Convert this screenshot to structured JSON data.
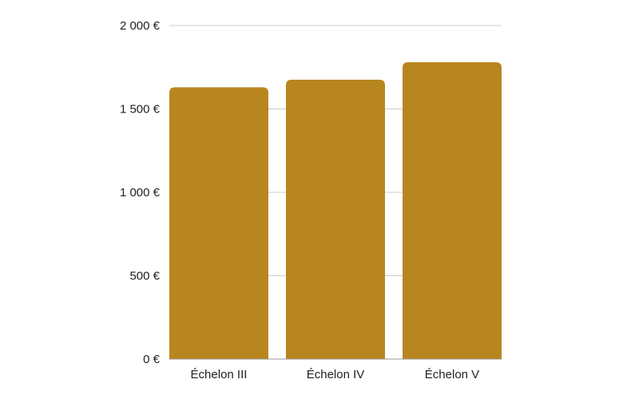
{
  "colors": {
    "bar": "#b8861f",
    "grid": "#cccccc",
    "axis": "#999999",
    "text": "#222222"
  },
  "chart_data": {
    "type": "bar",
    "categories": [
      "Échelon III",
      "Échelon IV",
      "Échelon V"
    ],
    "values": [
      1630,
      1675,
      1780
    ],
    "ylim": [
      0,
      2000
    ],
    "yticks": [
      0,
      500,
      1000,
      1500,
      2000
    ],
    "ytick_labels": [
      "0 €",
      "500 €",
      "1 000 €",
      "1 500 €",
      "2 000 €"
    ],
    "grid": true,
    "legend": "none"
  }
}
